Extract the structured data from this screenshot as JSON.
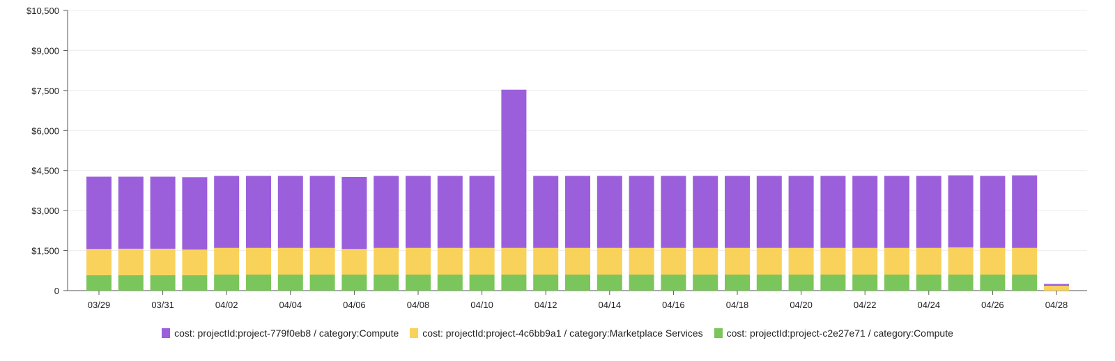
{
  "chart_data": {
    "type": "bar",
    "stacked": true,
    "categories": [
      "03/29",
      "03/30",
      "03/31",
      "04/01",
      "04/02",
      "04/03",
      "04/04",
      "04/05",
      "04/06",
      "04/07",
      "04/08",
      "04/09",
      "04/10",
      "04/11",
      "04/12",
      "04/13",
      "04/14",
      "04/15",
      "04/16",
      "04/17",
      "04/18",
      "04/19",
      "04/20",
      "04/21",
      "04/22",
      "04/23",
      "04/24",
      "04/25",
      "04/26",
      "04/27",
      "04/28"
    ],
    "x_tick_labels": [
      "03/29",
      "03/31",
      "04/02",
      "04/04",
      "04/06",
      "04/08",
      "04/10",
      "04/12",
      "04/14",
      "04/16",
      "04/18",
      "04/20",
      "04/22",
      "04/24",
      "04/26",
      "04/28"
    ],
    "y_tick_labels": [
      "0",
      "$1,500",
      "$3,000",
      "$4,500",
      "$6,000",
      "$7,500",
      "$9,000",
      "$10,500"
    ],
    "y_ticks": [
      0,
      1500,
      3000,
      4500,
      6000,
      7500,
      9000,
      10500
    ],
    "ylim": [
      0,
      10500
    ],
    "grid": true,
    "legend_position": "bottom",
    "series": [
      {
        "name": "cost: projectId:project-c2e27e71 / category:Compute",
        "color": "#7ac55c",
        "values": [
          580,
          580,
          580,
          580,
          600,
          600,
          600,
          600,
          600,
          600,
          600,
          600,
          600,
          600,
          600,
          600,
          600,
          600,
          600,
          600,
          600,
          600,
          600,
          600,
          600,
          600,
          600,
          600,
          600,
          600,
          0
        ]
      },
      {
        "name": "cost: projectId:project-4c6bb9a1 / category:Marketplace Services",
        "color": "#f9d25b",
        "values": [
          980,
          990,
          990,
          960,
          1000,
          1000,
          1000,
          1000,
          960,
          1000,
          1000,
          1000,
          1000,
          1000,
          1000,
          1000,
          1000,
          1000,
          1000,
          1000,
          1000,
          1000,
          1000,
          1000,
          1000,
          1000,
          1000,
          1020,
          1000,
          1000,
          180
        ]
      },
      {
        "name": "cost: projectId:project-779f0eb8 / category:Compute",
        "color": "#9b5fdc",
        "values": [
          2710,
          2700,
          2700,
          2710,
          2700,
          2700,
          2700,
          2700,
          2700,
          2700,
          2700,
          2700,
          2700,
          5930,
          2700,
          2700,
          2700,
          2700,
          2700,
          2700,
          2700,
          2700,
          2700,
          2700,
          2700,
          2700,
          2700,
          2700,
          2700,
          2720,
          70
        ]
      }
    ],
    "legend_order": [
      "cost: projectId:project-779f0eb8 / category:Compute",
      "cost: projectId:project-4c6bb9a1 / category:Marketplace Services",
      "cost: projectId:project-c2e27e71 / category:Compute"
    ]
  }
}
